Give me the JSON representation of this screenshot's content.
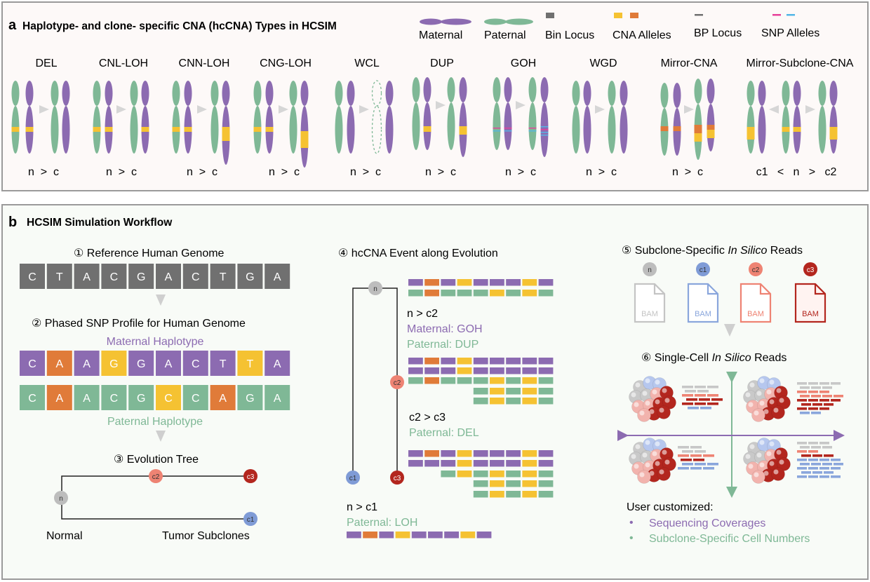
{
  "panel_a": {
    "letter": "a",
    "title": "Haplotype- and clone- specific CNA (hcCNA) Types in HCSIM",
    "legend": {
      "maternal": "Maternal",
      "paternal": "Paternal",
      "bin_locus": "Bin Locus",
      "cna_alleles": "CNA Alleles",
      "bp_locus": "BP Locus",
      "snp_alleles": "SNP Alleles"
    },
    "types": [
      {
        "name": "DEL",
        "relation": "n  >  c"
      },
      {
        "name": "CNL-LOH",
        "relation": "n  >  c"
      },
      {
        "name": "CNN-LOH",
        "relation": "n  >  c"
      },
      {
        "name": "CNG-LOH",
        "relation": "n  >  c"
      },
      {
        "name": "WCL",
        "relation": "n  >  c"
      },
      {
        "name": "DUP",
        "relation": "n  >  c"
      },
      {
        "name": "GOH",
        "relation": "n  >  c"
      },
      {
        "name": "WGD",
        "relation": "n  >  c"
      },
      {
        "name": "Mirror-CNA",
        "relation": "n  >  c"
      },
      {
        "name": "Mirror-Subclone-CNA",
        "relation": "c1   <   n   >   c2"
      }
    ]
  },
  "panel_b": {
    "letter": "b",
    "title": "HCSIM Simulation Workflow",
    "step1": "① Reference Human Genome",
    "reference_sequence": [
      "C",
      "T",
      "A",
      "C",
      "G",
      "A",
      "C",
      "T",
      "G",
      "A"
    ],
    "step2": "② Phased SNP Profile for Human Genome",
    "maternal_haplotype_label": "Maternal Haplotype",
    "maternal_sequence": [
      "C",
      "A",
      "A",
      "G",
      "G",
      "A",
      "C",
      "T",
      "T",
      "A"
    ],
    "paternal_sequence": [
      "C",
      "A",
      "A",
      "C",
      "G",
      "C",
      "C",
      "A",
      "G",
      "A"
    ],
    "paternal_haplotype_label": "Paternal Haplotype",
    "step3": "③ Evolution Tree",
    "tree_nodes": {
      "normal": "n",
      "c1": "c1",
      "c2": "c2",
      "c3": "c3"
    },
    "tree_labels": {
      "normal": "Normal",
      "tumor": "Tumor Subclones"
    },
    "step4": "④ hcCNA Event along Evolution",
    "events": [
      {
        "relation": "n > c2",
        "maternal": "Maternal: GOH",
        "paternal": "Paternal: DUP"
      },
      {
        "relation": "c2 > c3",
        "paternal": "Paternal: DEL"
      },
      {
        "relation": "n > c1",
        "paternal": "Paternal: LOH"
      }
    ],
    "step5_prefix": "⑤ Subclone-Specific ",
    "step5_italic": "In Silico",
    "step5_suffix": " Reads",
    "bam_label": "BAM",
    "bam_clones": [
      "n",
      "c1",
      "c2",
      "c3"
    ],
    "step6_prefix": "⑥ Single-Cell ",
    "step6_italic": "In Silico",
    "step6_suffix": " Reads",
    "user_customized": "User customized:",
    "options": [
      "Sequencing Coverages",
      "Subclone-Specific Cell Numbers"
    ]
  },
  "colors": {
    "maternal": "#8c6bb1",
    "paternal": "#7fb896",
    "gray": "#707070",
    "orange": "#e07b39",
    "yellow": "#f5c232",
    "normal_node": "#bdbdbd",
    "c1_node": "#7f9bd6",
    "c2_node": "#ee8373",
    "c3_node": "#b3261e"
  }
}
